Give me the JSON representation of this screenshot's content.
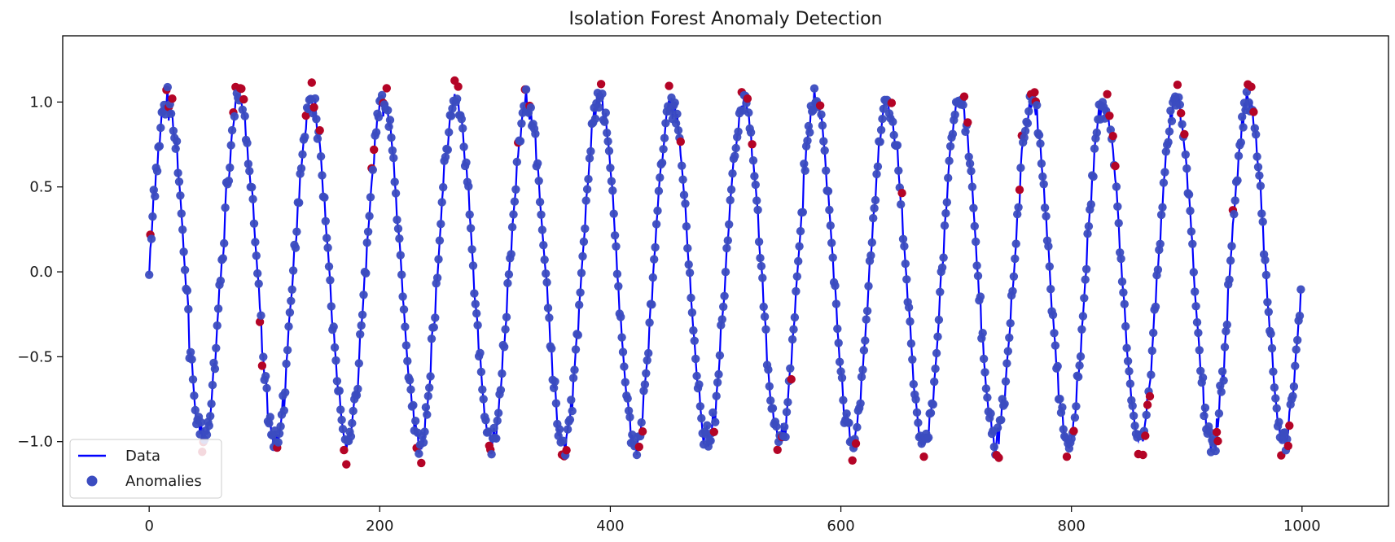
{
  "chart_data": {
    "type": "line",
    "title": "Isolation Forest Anomaly Detection",
    "xlabel": "",
    "ylabel": "",
    "xlim": [
      -75,
      1075
    ],
    "ylim": [
      -1.38,
      1.39
    ],
    "x_ticks": [
      0,
      200,
      400,
      600,
      800,
      1000
    ],
    "x_tick_labels": [
      "0",
      "200",
      "400",
      "600",
      "800",
      "1000"
    ],
    "y_ticks": [
      -1.0,
      -0.5,
      0.0,
      0.5,
      1.0
    ],
    "y_tick_labels": [
      "−1.0",
      "−0.5",
      "0.0",
      "0.5",
      "1.0"
    ],
    "grid": false,
    "legend": {
      "placement": "lower-left",
      "entries": [
        {
          "label": "Data",
          "marker": "line",
          "color": "#0000ff"
        },
        {
          "label": "Anomalies",
          "marker": "circle",
          "color": "#3b4cc0"
        }
      ]
    },
    "colors": {
      "line": "#0000ff",
      "normal_point": "#3b4cc0",
      "anomaly_point": "#b40426"
    },
    "series": [
      {
        "name": "Data",
        "style": "line",
        "description_of_values": "y = sin(2*pi*x/62.5) + noise, x = 0..999",
        "x_start": 0,
        "x_end": 999,
        "period": 62.5,
        "amplitude": 1.0
      },
      {
        "name": "Anomalies",
        "style": "scatter-colored-by-anomaly-score",
        "anomaly_x": [
          1,
          15,
          17,
          20,
          46,
          47,
          73,
          75,
          79,
          80,
          82,
          96,
          98,
          111,
          136,
          141,
          143,
          148,
          169,
          171,
          193,
          195,
          203,
          206,
          232,
          236,
          265,
          268,
          295,
          296,
          320,
          326,
          330,
          358,
          360,
          362,
          392,
          425,
          428,
          451,
          461,
          490,
          514,
          519,
          523,
          545,
          549,
          557,
          582,
          610,
          613,
          644,
          653,
          672,
          707,
          710,
          735,
          737,
          755,
          757,
          765,
          768,
          769,
          796,
          802,
          831,
          833,
          836,
          838,
          858,
          862,
          864,
          866,
          868,
          892,
          895,
          898,
          926,
          927,
          940,
          953,
          956,
          958,
          982,
          988,
          989
        ]
      }
    ]
  }
}
